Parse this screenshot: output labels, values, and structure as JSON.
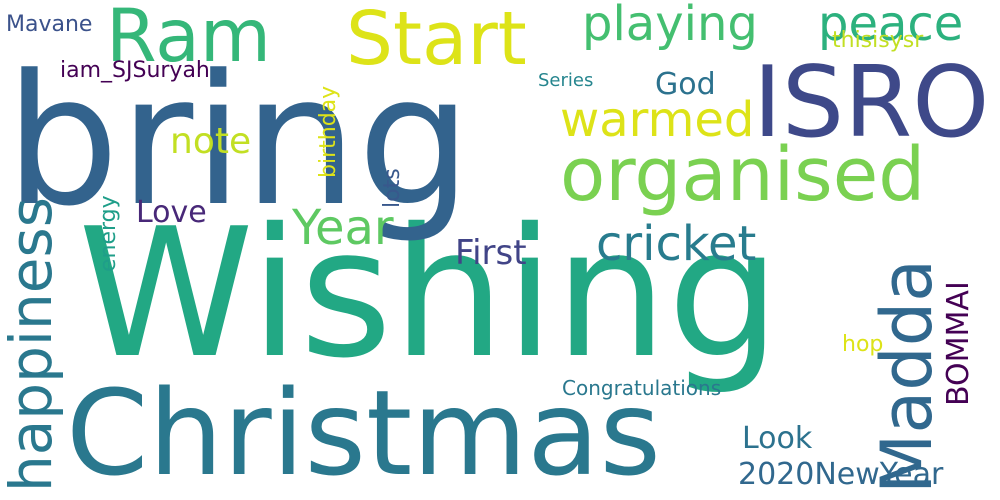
{
  "words": [
    {
      "text": "Wishing",
      "color": "#22a884"
    },
    {
      "text": "bring",
      "color": "#33638d"
    },
    {
      "text": "Christmas",
      "color": "#2a788e"
    },
    {
      "text": "ISRO",
      "color": "#3e4989"
    },
    {
      "text": "organised",
      "color": "#7ad151"
    },
    {
      "text": "Start",
      "color": "#dde318"
    },
    {
      "text": "Ram",
      "color": "#35b779"
    },
    {
      "text": "Madda",
      "color": "#31688e"
    },
    {
      "text": "happiness",
      "color": "#2a788e"
    },
    {
      "text": "playing",
      "color": "#44bf70"
    },
    {
      "text": "peace",
      "color": "#2cb17e"
    },
    {
      "text": "warmed",
      "color": "#dde318"
    },
    {
      "text": "cricket",
      "color": "#287c8e"
    },
    {
      "text": "Year",
      "color": "#5ec962"
    },
    {
      "text": "First",
      "color": "#414487"
    },
    {
      "text": "note",
      "color": "#c2df23"
    },
    {
      "text": "Love",
      "color": "#482878"
    },
    {
      "text": "God",
      "color": "#2c728e"
    },
    {
      "text": "Look",
      "color": "#2c728e"
    },
    {
      "text": "2020NewYear",
      "color": "#31688e"
    },
    {
      "text": "BOMMAI",
      "color": "#440154"
    },
    {
      "text": "iam_SJSuryah",
      "color": "#440154"
    },
    {
      "text": "Mavane",
      "color": "#3b528b"
    },
    {
      "text": "thisisysr",
      "color": "#c2df23"
    },
    {
      "text": "birthday",
      "color": "#dde318"
    },
    {
      "text": "lots",
      "color": "#38588c"
    },
    {
      "text": "energy",
      "color": "#1f9e89"
    },
    {
      "text": "Series",
      "color": "#25858e"
    },
    {
      "text": "hop",
      "color": "#dde318"
    },
    {
      "text": "Congratulations",
      "color": "#2a788e"
    }
  ]
}
